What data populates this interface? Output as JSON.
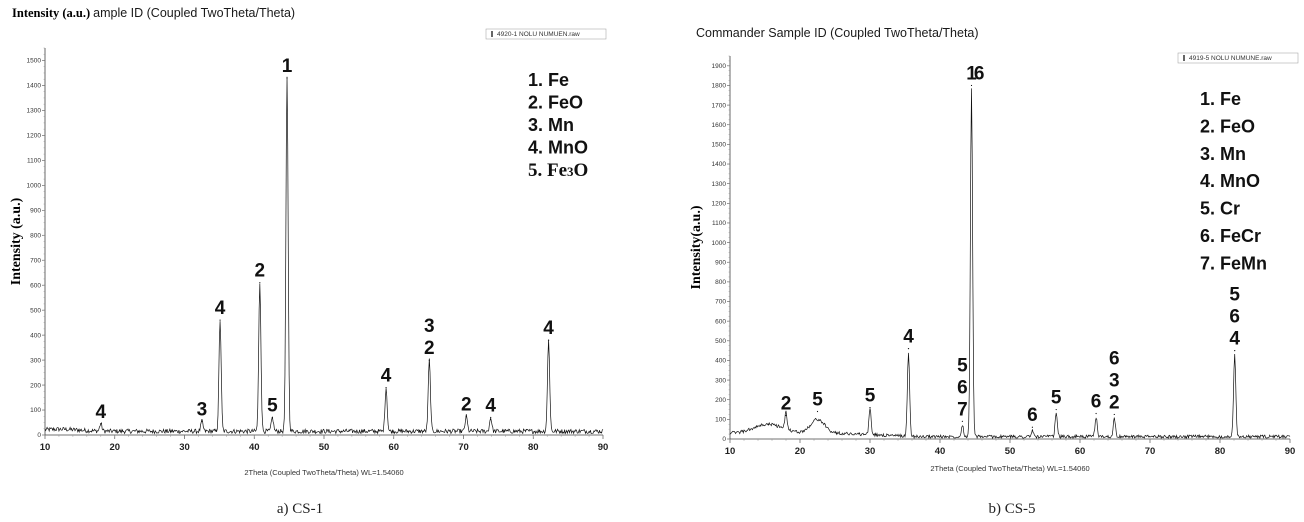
{
  "chart_data": [
    {
      "type": "line",
      "title": "Intensity (a.u.) ample ID (Coupled TwoTheta/Theta)",
      "title_prefix": "Intensity (a.u.)",
      "title_rest": "ample ID (Coupled TwoTheta/Theta)",
      "ylabel": "Intensity (a.u.)",
      "xlabel": "2Theta (Coupled TwoTheta/Theta) WL=1.54060",
      "file_label": "4920-1 NOLU NUMUEN.raw",
      "caption": "a) CS-1",
      "xlim": [
        10,
        90
      ],
      "ylim": [
        0,
        1550
      ],
      "x_ticks": [
        "10",
        "20",
        "30",
        "40",
        "50",
        "60",
        "70",
        "80",
        "90"
      ],
      "y_ticks": [
        "0",
        "100",
        "200",
        "300",
        "400",
        "500",
        "600",
        "700",
        "800",
        "900",
        "1000",
        "1100",
        "1200",
        "1300",
        "1400",
        "1500"
      ],
      "baseline": 15,
      "grid": false,
      "peaks": [
        {
          "x": 18.0,
          "y": 45
        },
        {
          "x": 32.5,
          "y": 55
        },
        {
          "x": 35.1,
          "y": 460
        },
        {
          "x": 40.8,
          "y": 610
        },
        {
          "x": 42.6,
          "y": 70
        },
        {
          "x": 44.7,
          "y": 1430
        },
        {
          "x": 58.9,
          "y": 190
        },
        {
          "x": 65.1,
          "y": 300
        },
        {
          "x": 70.4,
          "y": 75
        },
        {
          "x": 73.9,
          "y": 70
        },
        {
          "x": 82.2,
          "y": 380
        }
      ],
      "annotations": [
        {
          "x": 18.0,
          "y": 45,
          "lines": [
            "4"
          ]
        },
        {
          "x": 32.5,
          "y": 55,
          "lines": [
            "3"
          ]
        },
        {
          "x": 35.1,
          "y": 460,
          "lines": [
            "4"
          ]
        },
        {
          "x": 40.8,
          "y": 610,
          "lines": [
            "2"
          ]
        },
        {
          "x": 42.6,
          "y": 70,
          "lines": [
            "5"
          ]
        },
        {
          "x": 44.7,
          "y": 1430,
          "lines": [
            "1"
          ]
        },
        {
          "x": 58.9,
          "y": 190,
          "lines": [
            "4"
          ]
        },
        {
          "x": 65.1,
          "y": 300,
          "lines": [
            "3",
            "2"
          ]
        },
        {
          "x": 70.4,
          "y": 75,
          "lines": [
            "2"
          ]
        },
        {
          "x": 73.9,
          "y": 70,
          "lines": [
            "4"
          ]
        },
        {
          "x": 82.2,
          "y": 380,
          "lines": [
            "4"
          ]
        }
      ],
      "legend": [
        "1. Fe",
        "2. FeO",
        "3. Mn",
        "4. MnO"
      ],
      "legend_last_prefix": "5. Fe",
      "legend_last_sub": "3",
      "legend_last_suffix": "O",
      "legend_placement": "top-right"
    },
    {
      "type": "line",
      "title": "Commander Sample ID (Coupled TwoTheta/Theta)",
      "ylabel": "Intensity(a.u.)",
      "xlabel": "2Theta (Coupled TwoTheta/Theta) WL=1.54060",
      "file_label": "4919-5 NOLU NUMUNE.raw",
      "caption": "b) CS-5",
      "xlim": [
        10,
        90
      ],
      "ylim": [
        0,
        1950
      ],
      "x_ticks": [
        "10",
        "20",
        "30",
        "40",
        "50",
        "60",
        "70",
        "80",
        "90"
      ],
      "y_ticks": [
        "0",
        "100",
        "200",
        "300",
        "400",
        "500",
        "600",
        "700",
        "800",
        "900",
        "1000",
        "1100",
        "1200",
        "1300",
        "1400",
        "1500",
        "1600",
        "1700",
        "1800",
        "1900"
      ],
      "baseline": 30,
      "grid": false,
      "peaks": [
        {
          "x": 15.5,
          "y": 75
        },
        {
          "x": 18.0,
          "y": 120
        },
        {
          "x": 22.5,
          "y": 140
        },
        {
          "x": 30.0,
          "y": 160
        },
        {
          "x": 35.5,
          "y": 460
        },
        {
          "x": 43.2,
          "y": 90
        },
        {
          "x": 44.5,
          "y": 1800
        },
        {
          "x": 53.2,
          "y": 60
        },
        {
          "x": 56.6,
          "y": 150
        },
        {
          "x": 62.3,
          "y": 130
        },
        {
          "x": 64.9,
          "y": 125
        },
        {
          "x": 82.1,
          "y": 450
        }
      ],
      "annotations": [
        {
          "x": 18.0,
          "y": 120,
          "lines": [
            "2"
          ]
        },
        {
          "x": 22.5,
          "y": 140,
          "lines": [
            "5"
          ]
        },
        {
          "x": 30.0,
          "y": 160,
          "lines": [
            "5"
          ]
        },
        {
          "x": 35.5,
          "y": 460,
          "lines": [
            "4"
          ]
        },
        {
          "x": 43.2,
          "y": 90,
          "lines": [
            "5",
            "6",
            "7"
          ]
        },
        {
          "x": 44.5,
          "y": 1800,
          "lines": [
            "1"
          ]
        },
        {
          "x": 45.6,
          "y": 1800,
          "lines": [
            "6"
          ]
        },
        {
          "x": 53.2,
          "y": 60,
          "lines": [
            "6"
          ]
        },
        {
          "x": 56.6,
          "y": 150,
          "lines": [
            "5"
          ]
        },
        {
          "x": 62.3,
          "y": 130,
          "lines": [
            "6"
          ]
        },
        {
          "x": 64.9,
          "y": 125,
          "lines": [
            "6",
            "3",
            "2"
          ]
        },
        {
          "x": 82.1,
          "y": 450,
          "lines": [
            "5",
            "6",
            "4"
          ]
        }
      ],
      "legend": [
        "1. Fe",
        "2. FeO",
        "3. Mn",
        "4. MnO",
        "5. Cr",
        "6. FeCr",
        "7. FeMn"
      ],
      "legend_placement": "top-right"
    }
  ]
}
